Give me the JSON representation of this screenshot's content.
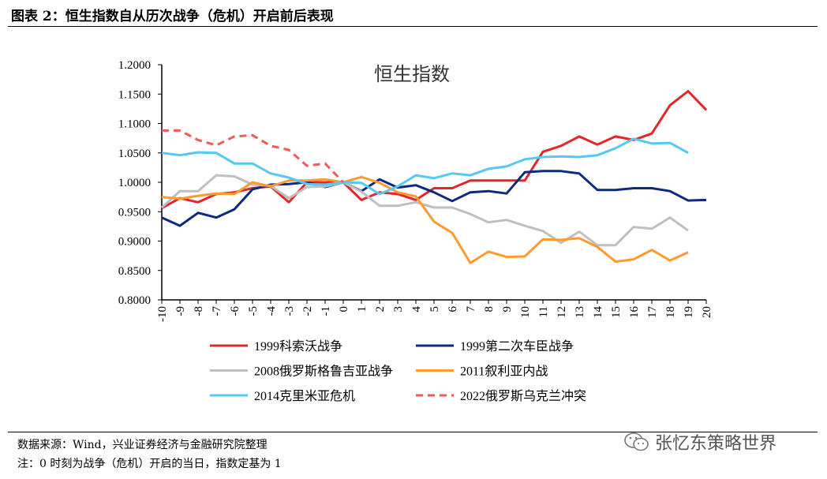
{
  "header": {
    "title": "图表 2：恒生指数自从历次战争（危机）开启前后表现"
  },
  "footer": {
    "source": "数据来源：Wind，兴业证券经济与金融研究院整理",
    "note": "注：0 时刻为战争（危机）开启的当日，指数定基为 1",
    "watermark": "张忆东策略世界",
    "watermark_icon": "wechat-icon"
  },
  "chart_data": {
    "type": "line",
    "title": "恒生指数",
    "xlabel": "",
    "ylabel": "",
    "x": [
      -10,
      -9,
      -8,
      -7,
      -6,
      -5,
      -4,
      -3,
      -2,
      -1,
      0,
      1,
      2,
      3,
      4,
      5,
      6,
      7,
      8,
      9,
      10,
      11,
      12,
      13,
      14,
      15,
      16,
      17,
      18,
      19,
      20
    ],
    "xlim": [
      -10,
      20
    ],
    "ylim": [
      0.8,
      1.2
    ],
    "y_ticks": [
      "0.8000",
      "0.8500",
      "0.9000",
      "0.9500",
      "1.0000",
      "1.0500",
      "1.1000",
      "1.1500",
      "1.2000"
    ],
    "grid": false,
    "legend_position": "bottom",
    "series": [
      {
        "name": "1999科索沃战争",
        "color": "#e3262a",
        "dashed": false,
        "values": [
          0.956,
          0.973,
          0.966,
          0.98,
          0.983,
          0.99,
          0.993,
          0.966,
          1.0,
          1.0,
          1.0,
          0.97,
          0.983,
          0.98,
          0.97,
          0.99,
          0.99,
          1.003,
          1.003,
          1.003,
          1.003,
          1.052,
          1.062,
          1.078,
          1.064,
          1.078,
          1.072,
          1.083,
          1.131,
          1.155,
          1.123
        ]
      },
      {
        "name": "1999第二次车臣战争",
        "color": "#0d2b7e",
        "dashed": false,
        "values": [
          0.94,
          0.926,
          0.948,
          0.94,
          0.954,
          0.988,
          0.996,
          0.997,
          1.0,
          0.992,
          1.0,
          0.985,
          1.005,
          0.991,
          0.995,
          0.983,
          0.968,
          0.983,
          0.985,
          0.981,
          1.017,
          1.019,
          1.019,
          1.015,
          0.987,
          0.987,
          0.99,
          0.99,
          0.985,
          0.969,
          0.97
        ]
      },
      {
        "name": "2008俄罗斯格鲁吉亚战争",
        "color": "#bfbfbf",
        "dashed": false,
        "values": [
          0.957,
          0.985,
          0.985,
          1.012,
          1.01,
          0.996,
          0.994,
          0.973,
          0.992,
          0.993,
          1.0,
          0.984,
          0.96,
          0.96,
          0.966,
          0.957,
          0.957,
          0.946,
          0.932,
          0.936,
          0.926,
          0.917,
          0.897,
          0.916,
          0.893,
          0.893,
          0.924,
          0.921,
          0.94,
          0.918,
          null
        ]
      },
      {
        "name": "2011叙利亚内战",
        "color": "#ff9a2e",
        "dashed": false,
        "values": [
          0.975,
          0.972,
          0.977,
          0.981,
          0.98,
          1.0,
          0.993,
          1.003,
          1.003,
          1.005,
          1.0,
          1.009,
          0.999,
          0.983,
          0.976,
          0.933,
          0.914,
          0.863,
          0.882,
          0.873,
          0.874,
          0.903,
          0.902,
          0.905,
          0.89,
          0.865,
          0.869,
          0.885,
          0.867,
          0.881,
          null
        ]
      },
      {
        "name": "2014克里米亚危机",
        "color": "#56c8f2",
        "dashed": false,
        "values": [
          1.05,
          1.046,
          1.051,
          1.05,
          1.032,
          1.032,
          1.015,
          1.008,
          0.997,
          0.996,
          1.0,
          0.999,
          0.98,
          0.993,
          1.012,
          1.007,
          1.015,
          1.012,
          1.023,
          1.027,
          1.039,
          1.043,
          1.044,
          1.043,
          1.046,
          1.058,
          1.074,
          1.066,
          1.067,
          1.05,
          null
        ]
      },
      {
        "name": "2022俄罗斯乌克兰冲突",
        "color": "#ee5a5e",
        "dashed": true,
        "values": [
          1.088,
          1.088,
          1.072,
          1.063,
          1.078,
          1.08,
          1.062,
          1.055,
          1.028,
          1.032,
          1.0,
          null,
          null,
          null,
          null,
          null,
          null,
          null,
          null,
          null,
          null,
          null,
          null,
          null,
          null,
          null,
          null,
          null,
          null,
          null,
          null
        ]
      }
    ]
  }
}
